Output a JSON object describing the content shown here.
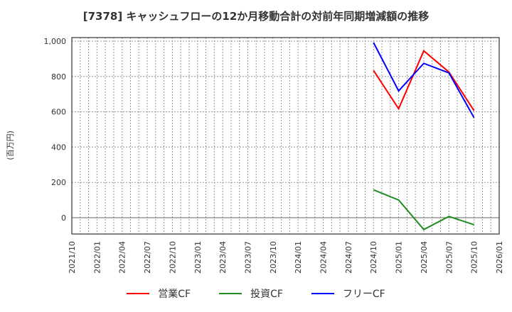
{
  "title": "[7378]  キャッシュフローの12か月移動合計の対前年同期増減額の推移",
  "chart_data": {
    "type": "line",
    "title": "[7378]  キャッシュフローの12か月移動合計の対前年同期増減額の推移",
    "xlabel": "",
    "ylabel": "(百万円)",
    "ylim": [
      -90,
      1020
    ],
    "yticks": [
      0,
      200,
      400,
      600,
      800,
      1000
    ],
    "ytick_labels": [
      "0",
      "200",
      "400",
      "600",
      "800",
      "1,000"
    ],
    "grid": true,
    "legend_position": "bottom",
    "categories": [
      "2021/10",
      "2022/01",
      "2022/04",
      "2022/07",
      "2022/10",
      "2023/01",
      "2023/04",
      "2023/07",
      "2023/10",
      "2024/01",
      "2024/04",
      "2024/07",
      "2024/10",
      "2025/01",
      "2025/04",
      "2025/07",
      "2025/10",
      "2026/01"
    ],
    "series": [
      {
        "name": "営業CF",
        "color": "#ff0000",
        "x": [
          "2024/10",
          "2025/01",
          "2025/04",
          "2025/07",
          "2025/10"
        ],
        "values": [
          834,
          617,
          945,
          825,
          606
        ]
      },
      {
        "name": "投資CF",
        "color": "#228b22",
        "x": [
          "2024/10",
          "2025/01",
          "2025/04",
          "2025/07",
          "2025/10"
        ],
        "values": [
          158,
          100,
          -67,
          7,
          -40
        ]
      },
      {
        "name": "フリーCF",
        "color": "#0000ff",
        "x": [
          "2024/10",
          "2025/01",
          "2025/04",
          "2025/07",
          "2025/10"
        ],
        "values": [
          992,
          718,
          874,
          820,
          566
        ]
      }
    ]
  },
  "legend": {
    "items": [
      {
        "label": "営業CF",
        "color": "#ff0000"
      },
      {
        "label": "投資CF",
        "color": "#228b22"
      },
      {
        "label": "フリーCF",
        "color": "#0000ff"
      }
    ]
  }
}
